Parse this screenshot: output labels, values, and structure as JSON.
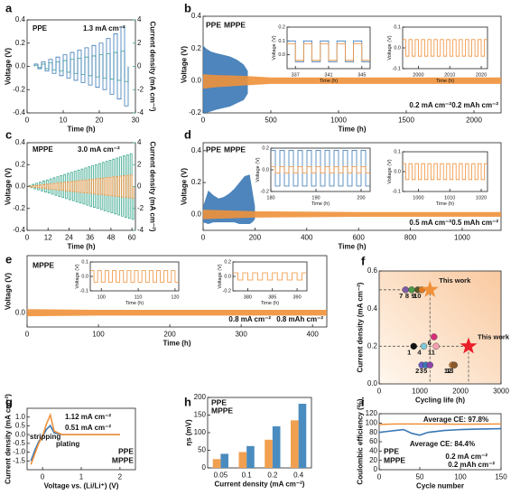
{
  "chart_data": [
    {
      "panel": "a",
      "type": "polarization",
      "xlabel": "Time (h)",
      "ylabel": "Voltage (V)",
      "y2label": "Current density (mA cm⁻²)",
      "xlim": [
        0,
        30
      ],
      "xticks": [
        0,
        10,
        20,
        30
      ],
      "ylim": [
        -0.4,
        0.4
      ],
      "yticks": [
        -0.4,
        -0.2,
        {
          "value": 0,
          "label": "0.0"
        },
        0.2,
        0.4
      ],
      "y2lim": [
        -4,
        4
      ],
      "y2ticks": [
        -4,
        -2,
        0,
        2,
        4
      ],
      "x": [
        2,
        4,
        6,
        8,
        10,
        12,
        14,
        16,
        18,
        20,
        22,
        24,
        26
      ],
      "voltage": [
        0.02,
        0.04,
        0.06,
        0.08,
        0.1,
        0.12,
        0.14,
        0.16,
        0.18,
        0.2,
        0.24,
        0.28,
        0.34
      ],
      "current": [
        0.1,
        0.2,
        0.3,
        0.4,
        0.5,
        0.6,
        0.7,
        0.8,
        0.9,
        1.0,
        1.1,
        1.2,
        1.3
      ],
      "voltage_color": "#3a78b5",
      "current_color": "#3aa88e",
      "annotations": [
        {
          "text": "PPE",
          "color": "#3a78b5"
        },
        {
          "text": "1.3 mA cm⁻²",
          "color": "#3a78b5"
        }
      ]
    },
    {
      "panel": "b",
      "type": "cycling",
      "xlabel": "Time (h)",
      "ylabel": "Voltage (V)",
      "xlim": [
        0,
        2200
      ],
      "xticks": [
        0,
        500,
        1000,
        1500,
        2000
      ],
      "ylim": [
        -0.2,
        0.4
      ],
      "yticks": [
        -0.2,
        {
          "value": 0,
          "label": "0.0"
        },
        0.2,
        0.4
      ],
      "series": [
        {
          "name": "PPE",
          "color": "#3a78b5",
          "x": [
            0,
            20,
            60,
            100,
            150,
            200,
            250,
            300,
            330
          ],
          "upper": [
            0.22,
            0.2,
            0.18,
            0.17,
            0.16,
            0.15,
            0.13,
            0.1,
            0.06
          ],
          "lower": [
            -0.2,
            -0.2,
            -0.19,
            -0.18,
            -0.17,
            -0.16,
            -0.14,
            -0.12,
            -0.08
          ]
        },
        {
          "name": "MPPE",
          "color": "#f0913a",
          "x": [
            0,
            100,
            300,
            500,
            1000,
            1500,
            2000,
            2200
          ],
          "upper": [
            0.04,
            0.035,
            0.03,
            0.02,
            0.02,
            0.02,
            0.02,
            0.02
          ],
          "lower": [
            -0.05,
            -0.04,
            -0.03,
            -0.02,
            -0.02,
            -0.02,
            -0.02,
            -0.02
          ]
        }
      ],
      "annotations": [
        {
          "text": "0.2 mA cm⁻²",
          "color": "#111"
        },
        {
          "text": "0.2 mAh cm⁻²",
          "color": "#111"
        }
      ],
      "insets": [
        {
          "xlabel": "Time (h)",
          "ylabel": "Voltage (V)",
          "xlim": [
            336,
            346
          ],
          "xticks": [
            337,
            341,
            345
          ],
          "ylim": [
            -0.1,
            0.2
          ],
          "yticks": [
            {
              "value": 0,
              "label": "0.0"
            },
            0.1,
            0.2
          ],
          "waves": [
            {
              "color": "#3a78b5",
              "high": 0.1,
              "low": -0.05,
              "period": 2
            },
            {
              "color": "#f0913a",
              "high": 0.08,
              "low": -0.04,
              "period": 2
            }
          ]
        },
        {
          "xlabel": "Time (h)",
          "ylabel": "Voltage (V)",
          "xlim": [
            1995,
            2022
          ],
          "xticks": [
            2000,
            2010,
            2020
          ],
          "ylim": [
            -0.1,
            0.1
          ],
          "yticks": [
            -0.1,
            {
              "value": 0,
              "label": "0.0"
            },
            0.1
          ],
          "waves": [
            {
              "color": "#f0913a",
              "high": 0.04,
              "low": -0.04,
              "period": 2
            }
          ]
        }
      ]
    },
    {
      "panel": "c",
      "type": "polarization",
      "xlabel": "Time (h)",
      "ylabel": "Voltage (V)",
      "y2label": "Current density (mA cm⁻²)",
      "xlim": [
        0,
        62
      ],
      "xticks": [
        0,
        12,
        24,
        36,
        48,
        60
      ],
      "ylim": [
        -0.4,
        0.4
      ],
      "yticks": [
        -0.4,
        -0.2,
        {
          "value": 0,
          "label": "0.0"
        },
        0.2,
        0.4
      ],
      "y2lim": [
        -4,
        4
      ],
      "y2ticks": [
        -4,
        -2,
        0,
        2,
        4
      ],
      "x": [
        1,
        3,
        5,
        7,
        9,
        11,
        13,
        15,
        17,
        19,
        21,
        23,
        25,
        27,
        29,
        31,
        33,
        35,
        37,
        39,
        41,
        43,
        45,
        47,
        49,
        51,
        53,
        55,
        57,
        59
      ],
      "voltage": [
        0.004,
        0.007,
        0.011,
        0.014,
        0.018,
        0.021,
        0.025,
        0.028,
        0.032,
        0.035,
        0.039,
        0.042,
        0.046,
        0.049,
        0.053,
        0.056,
        0.06,
        0.063,
        0.067,
        0.07,
        0.074,
        0.077,
        0.081,
        0.084,
        0.088,
        0.091,
        0.095,
        0.098,
        0.102,
        0.105
      ],
      "current": [
        0.1,
        0.2,
        0.3,
        0.4,
        0.5,
        0.6,
        0.7,
        0.8,
        0.9,
        1.0,
        1.1,
        1.2,
        1.3,
        1.4,
        1.5,
        1.6,
        1.7,
        1.8,
        1.9,
        2.0,
        2.1,
        2.2,
        2.3,
        2.4,
        2.5,
        2.6,
        2.7,
        2.8,
        2.9,
        3.0
      ],
      "voltage_color": "#f0913a",
      "current_color": "#3aa88e",
      "annotations": [
        {
          "text": "MPPE",
          "color": "#f0913a"
        },
        {
          "text": "3.0 mA cm⁻²",
          "color": "#f0913a"
        }
      ]
    },
    {
      "panel": "d",
      "type": "cycling",
      "xlabel": "Time (h)",
      "ylabel": "Voltage (V)",
      "xlim": [
        0,
        1150
      ],
      "xticks": [
        0,
        200,
        400,
        600,
        800,
        1000
      ],
      "ylim": [
        -0.1,
        0.45
      ],
      "yticks": [
        {
          "value": 0,
          "label": "0.0"
        },
        0.2,
        0.4
      ],
      "series": [
        {
          "name": "PPE",
          "color": "#3a78b5",
          "x": [
            0,
            20,
            40,
            60,
            80,
            100,
            120,
            140,
            160,
            180,
            190,
            200
          ],
          "upper": [
            0.05,
            0.15,
            0.12,
            0.1,
            0.11,
            0.13,
            0.16,
            0.2,
            0.24,
            0.25,
            0.15,
            0.05
          ],
          "lower": [
            -0.05,
            -0.06,
            -0.05,
            -0.05,
            -0.05,
            -0.05,
            -0.05,
            -0.06,
            -0.06,
            -0.06,
            -0.05,
            -0.03
          ]
        },
        {
          "name": "MPPE",
          "color": "#f0913a",
          "x": [
            0,
            100,
            200,
            600,
            1000,
            1150
          ],
          "upper": [
            0.03,
            0.025,
            0.02,
            0.015,
            0.015,
            0.015
          ],
          "lower": [
            -0.03,
            -0.025,
            -0.02,
            -0.015,
            -0.015,
            -0.015
          ]
        }
      ],
      "annotations": [
        {
          "text": "0.5 mA cm⁻²",
          "color": "#111"
        },
        {
          "text": "0.5 mAh cm⁻²",
          "color": "#111"
        }
      ],
      "insets": [
        {
          "xlabel": "Time (h)",
          "ylabel": "Voltage (V)",
          "xlim": [
            180,
            202
          ],
          "xticks": [
            180,
            190,
            200
          ],
          "ylim": [
            -0.2,
            0.2
          ],
          "yticks": [
            -0.2,
            {
              "value": 0,
              "label": "0.0"
            },
            0.2
          ],
          "waves": [
            {
              "color": "#3a78b5",
              "high": 0.18,
              "low": -0.15,
              "period": 2
            },
            {
              "color": "#f0913a",
              "high": 0.03,
              "low": -0.03,
              "period": 2
            }
          ]
        },
        {
          "xlabel": "Time (h)",
          "ylabel": "Voltage (V)",
          "xlim": [
            995,
            1022
          ],
          "xticks": [
            1000,
            1010,
            1020
          ],
          "ylim": [
            -0.1,
            0.1
          ],
          "yticks": [
            -0.1,
            {
              "value": 0,
              "label": "0.0"
            },
            0.1
          ],
          "waves": [
            {
              "color": "#f0913a",
              "high": 0.04,
              "low": -0.04,
              "period": 2
            }
          ]
        }
      ]
    },
    {
      "panel": "e",
      "type": "cycling",
      "xlabel": "Time (h)",
      "ylabel": "Voltage (V)",
      "xlim": [
        0,
        420
      ],
      "xticks": [
        0,
        100,
        200,
        300,
        400
      ],
      "ylim": [
        -0.1,
        0.4
      ],
      "yticks": [
        {
          "value": 0,
          "label": "0.0"
        }
      ],
      "series": [
        {
          "name": "MPPE",
          "color": "#f0913a",
          "x": [
            0,
            100,
            200,
            300,
            420
          ],
          "upper": [
            0.025,
            0.02,
            0.02,
            0.02,
            0.02
          ],
          "lower": [
            -0.025,
            -0.02,
            -0.02,
            -0.02,
            -0.02
          ]
        }
      ],
      "annotations": [
        {
          "text": "0.8 mA cm⁻²",
          "color": "#111"
        },
        {
          "text": "0.8 mAh cm⁻²",
          "color": "#111"
        }
      ],
      "insets": [
        {
          "xlabel": "Time (h)",
          "ylabel": "Voltage (V)",
          "xlim": [
            97,
            121
          ],
          "xticks": [
            100,
            110,
            120
          ],
          "ylim": [
            -0.1,
            0.1
          ],
          "yticks": [
            -0.1,
            {
              "value": 0,
              "label": "0.0"
            },
            0.1
          ],
          "waves": [
            {
              "color": "#f0913a",
              "high": 0.04,
              "low": -0.04,
              "period": 2
            }
          ]
        },
        {
          "xlabel": "Time (h)",
          "ylabel": "Voltage (V)",
          "xlim": [
            377,
            392
          ],
          "xticks": [
            380,
            385,
            390
          ],
          "ylim": [
            -0.2,
            0.2
          ],
          "yticks": [
            -0.2,
            {
              "value": 0,
              "label": "0.0"
            },
            0.2
          ],
          "waves": [
            {
              "color": "#f0913a",
              "high": 0.05,
              "low": -0.05,
              "period": 2
            }
          ]
        }
      ]
    },
    {
      "panel": "f",
      "type": "scatter",
      "xlabel": "Cycling life (h)",
      "ylabel": "Current density (mA cm⁻²)",
      "xlim": [
        0,
        3000
      ],
      "xticks": [
        0,
        1000,
        2000,
        3000
      ],
      "ylim": [
        0,
        0.6
      ],
      "yticks": [
        {
          "value": 0,
          "label": "0.0"
        },
        0.2,
        0.4,
        0.6
      ],
      "points": {
        "x": [
          850,
          1050,
          1150,
          1100,
          1250,
          1350,
          650,
          800,
          950,
          1050,
          1400,
          1800,
          1850
        ],
        "y": [
          0.2,
          0.1,
          0.1,
          0.2,
          0.1,
          0.25,
          0.5,
          0.5,
          0.5,
          0.5,
          0.2,
          0.1,
          0.1
        ],
        "labels": [
          "1",
          "2",
          "3",
          "4",
          "5",
          "6",
          "7",
          "8",
          "9",
          "10",
          "11",
          "12",
          "13"
        ],
        "colors": [
          "#111111",
          "#6a5acd",
          "#3a78b5",
          "#7fc8d8",
          "#8e44ad",
          "#d6307a",
          "#7d5ba6",
          "#4a9a4a",
          "#5a5a2a",
          "#e07a20",
          "#f4a0b0",
          "#c8782a",
          "#8b5a2b"
        ]
      },
      "stars": {
        "x": [
          1250,
          2200
        ],
        "y": [
          0.5,
          0.2
        ],
        "labels": [
          "This work",
          "This work"
        ],
        "colors": [
          "#f0913a",
          "#e8202a"
        ]
      }
    },
    {
      "panel": "g",
      "type": "line",
      "xlabel": "Voltage vs. (Li/Li⁺) (V)",
      "ylabel": "Current density (mA cm⁻²)",
      "xlim": [
        -0.4,
        2.4
      ],
      "xticks": [
        0,
        1,
        2
      ],
      "ylim": [
        -2,
        1.5
      ],
      "yticks": [
        -1.5,
        {
          "value": -1,
          "label": "-1.0"
        },
        -0.5,
        {
          "value": 0,
          "label": "0.0"
        },
        0.5,
        {
          "value": 1,
          "label": "1.0"
        }
      ],
      "series": [
        {
          "name": "PPE",
          "color": "#3a78b5",
          "x": [
            -0.3,
            -0.2,
            -0.1,
            0,
            0.1,
            0.2,
            0.3,
            0.5,
            1,
            2
          ],
          "values": [
            -1.5,
            -0.9,
            -0.4,
            -0.1,
            0.3,
            0.51,
            0.1,
            0,
            0,
            0
          ]
        },
        {
          "name": "MPPE",
          "color": "#f0913a",
          "x": [
            -0.3,
            -0.2,
            -0.1,
            0,
            0.1,
            0.2,
            0.3,
            0.5,
            1,
            2
          ],
          "values": [
            -1.7,
            -1.1,
            -0.5,
            -0.1,
            0.6,
            1.12,
            0.2,
            0,
            0,
            0
          ]
        }
      ],
      "annotations": [
        {
          "text": "1.12 mA cm⁻²",
          "color": "#f0913a"
        },
        {
          "text": "0.51 mA cm⁻²",
          "color": "#3a78b5"
        },
        {
          "text": "stripping",
          "color": "#111"
        },
        {
          "text": "plating",
          "color": "#111"
        }
      ]
    },
    {
      "panel": "h",
      "type": "bar",
      "xlabel": "Current density (mA cm⁻²)",
      "ylabel": "ηs (mV)",
      "categories": [
        "0.05",
        "0.1",
        "0.2",
        "0.4"
      ],
      "ylim": [
        0,
        200
      ],
      "yticks": [
        0,
        50,
        100,
        150,
        200
      ],
      "series": [
        {
          "name": "PPE",
          "color": "#4a8cbf",
          "values": [
            40,
            62,
            118,
            182
          ]
        },
        {
          "name": "MPPE",
          "color": "#f0a050",
          "values": [
            25,
            45,
            80,
            135
          ]
        }
      ]
    },
    {
      "panel": "i",
      "type": "line",
      "xlabel": "Cycle number",
      "ylabel": "Coulombic efficiency (%)",
      "xlim": [
        0,
        150
      ],
      "xticks": [
        0,
        50,
        100,
        150
      ],
      "ylim": [
        0,
        120
      ],
      "yticks": [
        0,
        20,
        40,
        60,
        80,
        100,
        120
      ],
      "series": [
        {
          "name": "PPE",
          "color": "#3a78b5",
          "x": [
            0,
            10,
            20,
            30,
            40,
            50,
            60,
            80,
            100,
            120,
            150
          ],
          "values": [
            80,
            82,
            84,
            86,
            78,
            74,
            80,
            84,
            86,
            87,
            88
          ]
        },
        {
          "name": "MPPE",
          "color": "#f0913a",
          "x": [
            0,
            20,
            50,
            100,
            150
          ],
          "values": [
            97,
            98,
            98,
            97.5,
            98
          ]
        }
      ],
      "annotations": [
        {
          "text": "Average CE: 97.8%",
          "color": "#f0913a"
        },
        {
          "text": "Average CE: 84.4%",
          "color": "#3a78b5"
        },
        {
          "text": "0.2 mA cm⁻²",
          "color": "#111"
        },
        {
          "text": "0.2 mAh cm⁻²",
          "color": "#111"
        }
      ]
    }
  ]
}
